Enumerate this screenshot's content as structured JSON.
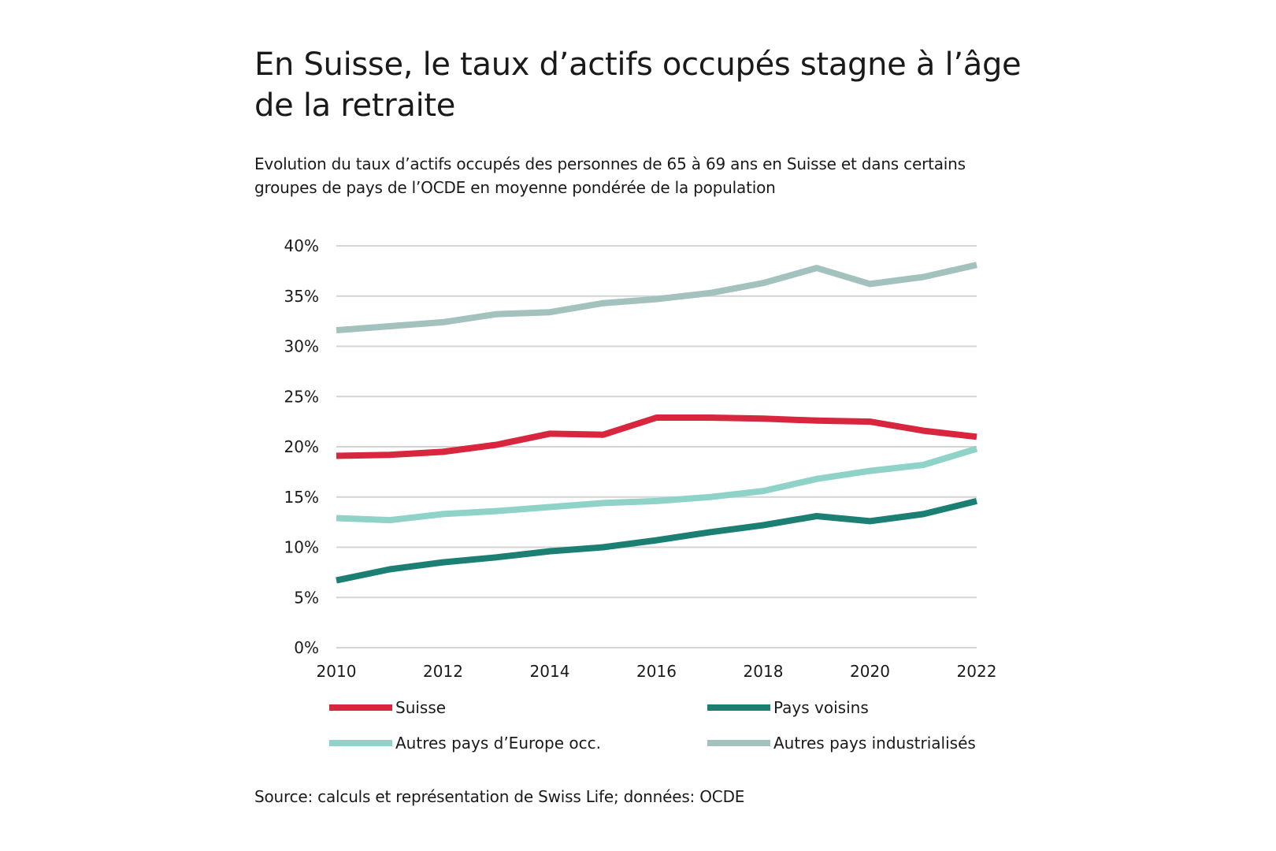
{
  "header": {
    "title": "En Suisse, le taux d’actifs occupés stagne à l’âge de la retraite",
    "subtitle": "Evolution du taux d’actifs occupés des personnes de 65 à 69 ans en Suisse et dans certains groupes de pays de l’OCDE en moyenne pondérée de la population"
  },
  "footer": {
    "source": "Source: calculs et représentation de Swiss Life; données: OCDE"
  },
  "chart_data": {
    "type": "line",
    "x": [
      2010,
      2011,
      2012,
      2013,
      2014,
      2015,
      2016,
      2017,
      2018,
      2019,
      2020,
      2021,
      2022
    ],
    "x_ticks": [
      "2010",
      "2012",
      "2014",
      "2016",
      "2018",
      "2020",
      "2022"
    ],
    "y_ticks": [
      "0%",
      "5%",
      "10%",
      "15%",
      "20%",
      "25%",
      "30%",
      "35%",
      "40%"
    ],
    "ylim": [
      0,
      40
    ],
    "xlim": [
      2010,
      2022
    ],
    "grid": "horizontal",
    "legend_position": "bottom",
    "series": [
      {
        "name": "Suisse",
        "color": "#d7263d",
        "values": [
          19.1,
          19.2,
          19.5,
          20.2,
          21.3,
          21.2,
          22.9,
          22.9,
          22.8,
          22.6,
          22.5,
          21.6,
          21.0
        ]
      },
      {
        "name": "Pays voisins",
        "color": "#1b7f73",
        "values": [
          6.7,
          7.8,
          8.5,
          9.0,
          9.6,
          10.0,
          10.7,
          11.5,
          12.2,
          13.1,
          12.6,
          13.3,
          14.6
        ]
      },
      {
        "name": "Autres pays d’Europe occ.",
        "color": "#8fd3c8",
        "values": [
          12.9,
          12.7,
          13.3,
          13.6,
          14.0,
          14.4,
          14.6,
          15.0,
          15.6,
          16.8,
          17.6,
          18.2,
          19.8
        ]
      },
      {
        "name": "Autres pays industrialisés",
        "color": "#a3c2bd",
        "values": [
          31.6,
          32.0,
          32.4,
          33.2,
          33.4,
          34.3,
          34.7,
          35.3,
          36.3,
          37.8,
          36.2,
          36.9,
          38.1
        ]
      }
    ]
  }
}
